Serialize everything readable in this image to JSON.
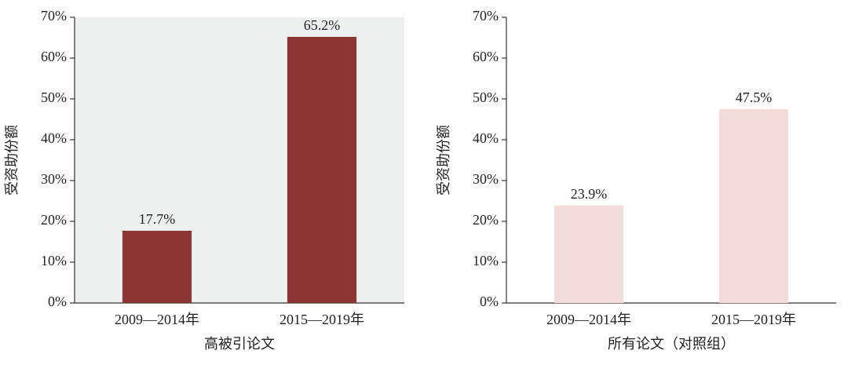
{
  "chart_data": [
    {
      "type": "bar",
      "y_label": "受资助份额",
      "x_label": "高被引论文",
      "categories": [
        "2009—2014年",
        "2015—2019年"
      ],
      "values": [
        17.7,
        65.2
      ],
      "value_labels": [
        "17.7%",
        "65.2%"
      ],
      "color": "#8b3535",
      "plot_background": "#eef0ef",
      "ylim": [
        0,
        70
      ],
      "yticks": [
        {
          "value": 0,
          "label": "0%"
        },
        {
          "value": 10,
          "label": "10%"
        },
        {
          "value": 20,
          "label": "20%"
        },
        {
          "value": 30,
          "label": "30%"
        },
        {
          "value": 40,
          "label": "40%"
        },
        {
          "value": 50,
          "label": "50%"
        },
        {
          "value": 60,
          "label": "60%"
        },
        {
          "value": 70,
          "label": "70%"
        }
      ]
    },
    {
      "type": "bar",
      "y_label": "受资助份额",
      "x_label": "所有论文（对照组）",
      "categories": [
        "2009—2014年",
        "2015—2019年"
      ],
      "values": [
        23.9,
        47.5
      ],
      "value_labels": [
        "23.9%",
        "47.5%"
      ],
      "color": "#f2dcdc",
      "plot_background": "#ffffff",
      "ylim": [
        0,
        70
      ],
      "yticks": [
        {
          "value": 0,
          "label": "0%"
        },
        {
          "value": 10,
          "label": "10%"
        },
        {
          "value": 20,
          "label": "20%"
        },
        {
          "value": 30,
          "label": "30%"
        },
        {
          "value": 40,
          "label": "40%"
        },
        {
          "value": 50,
          "label": "50%"
        },
        {
          "value": 60,
          "label": "60%"
        },
        {
          "value": 70,
          "label": "70%"
        }
      ]
    }
  ]
}
